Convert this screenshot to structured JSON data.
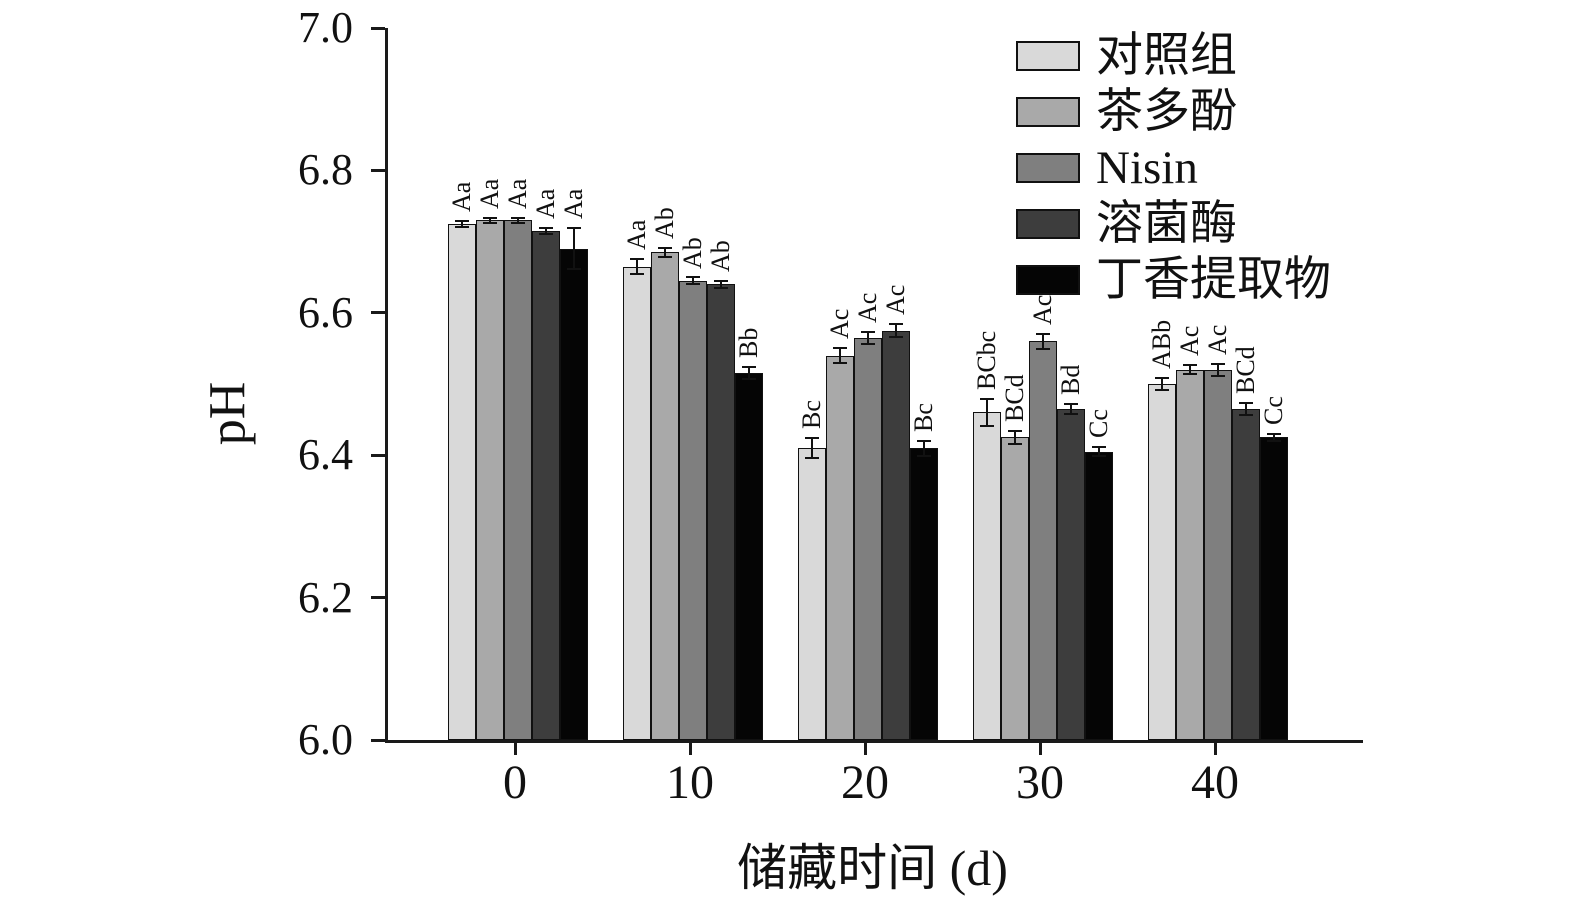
{
  "chart_data": {
    "type": "bar",
    "title": "",
    "xlabel": "储藏时间 (d)",
    "ylabel": "pH",
    "ylim": [
      6.0,
      7.0
    ],
    "yticks": [
      "6.0",
      "6.2",
      "6.4",
      "6.6",
      "6.8",
      "7.0"
    ],
    "grid": false,
    "legend_position": "top-right",
    "error_bars": true,
    "categories": [
      "0",
      "10",
      "20",
      "30",
      "40"
    ],
    "series": [
      {
        "name": "对照组",
        "color": "#d9d9d9",
        "values": [
          6.725,
          6.665,
          6.41,
          6.46,
          6.5
        ],
        "errors": [
          0.006,
          0.012,
          0.015,
          0.02,
          0.01
        ],
        "labels": [
          "Aa",
          "Aa",
          "Bc",
          "BCbc",
          "ABb"
        ]
      },
      {
        "name": "茶多酚",
        "color": "#a9a9a9",
        "values": [
          6.73,
          6.685,
          6.54,
          6.425,
          6.52
        ],
        "errors": [
          0.005,
          0.008,
          0.012,
          0.01,
          0.008
        ],
        "labels": [
          "Aa",
          "Ab",
          "Ac",
          "BCd",
          "Ac"
        ]
      },
      {
        "name": "Nisin",
        "color": "#7f7f7f",
        "values": [
          6.73,
          6.645,
          6.565,
          6.56,
          6.52
        ],
        "errors": [
          0.005,
          0.006,
          0.01,
          0.012,
          0.01
        ],
        "labels": [
          "Aa",
          "Ab",
          "Ac",
          "Ac",
          "Ac"
        ]
      },
      {
        "name": "溶菌酶",
        "color": "#3d3d3d",
        "values": [
          6.715,
          6.64,
          6.575,
          6.465,
          6.465
        ],
        "errors": [
          0.006,
          0.006,
          0.01,
          0.008,
          0.01
        ],
        "labels": [
          "Aa",
          "Ab",
          "Ac",
          "Bd",
          "BCd"
        ]
      },
      {
        "name": "丁香提取物",
        "color": "#050505",
        "values": [
          6.69,
          6.515,
          6.41,
          6.405,
          6.425
        ],
        "errors": [
          0.03,
          0.01,
          0.012,
          0.008,
          0.006
        ],
        "labels": [
          "Aa",
          "Bb",
          "Bc",
          "Cc",
          "Cc"
        ]
      }
    ]
  }
}
